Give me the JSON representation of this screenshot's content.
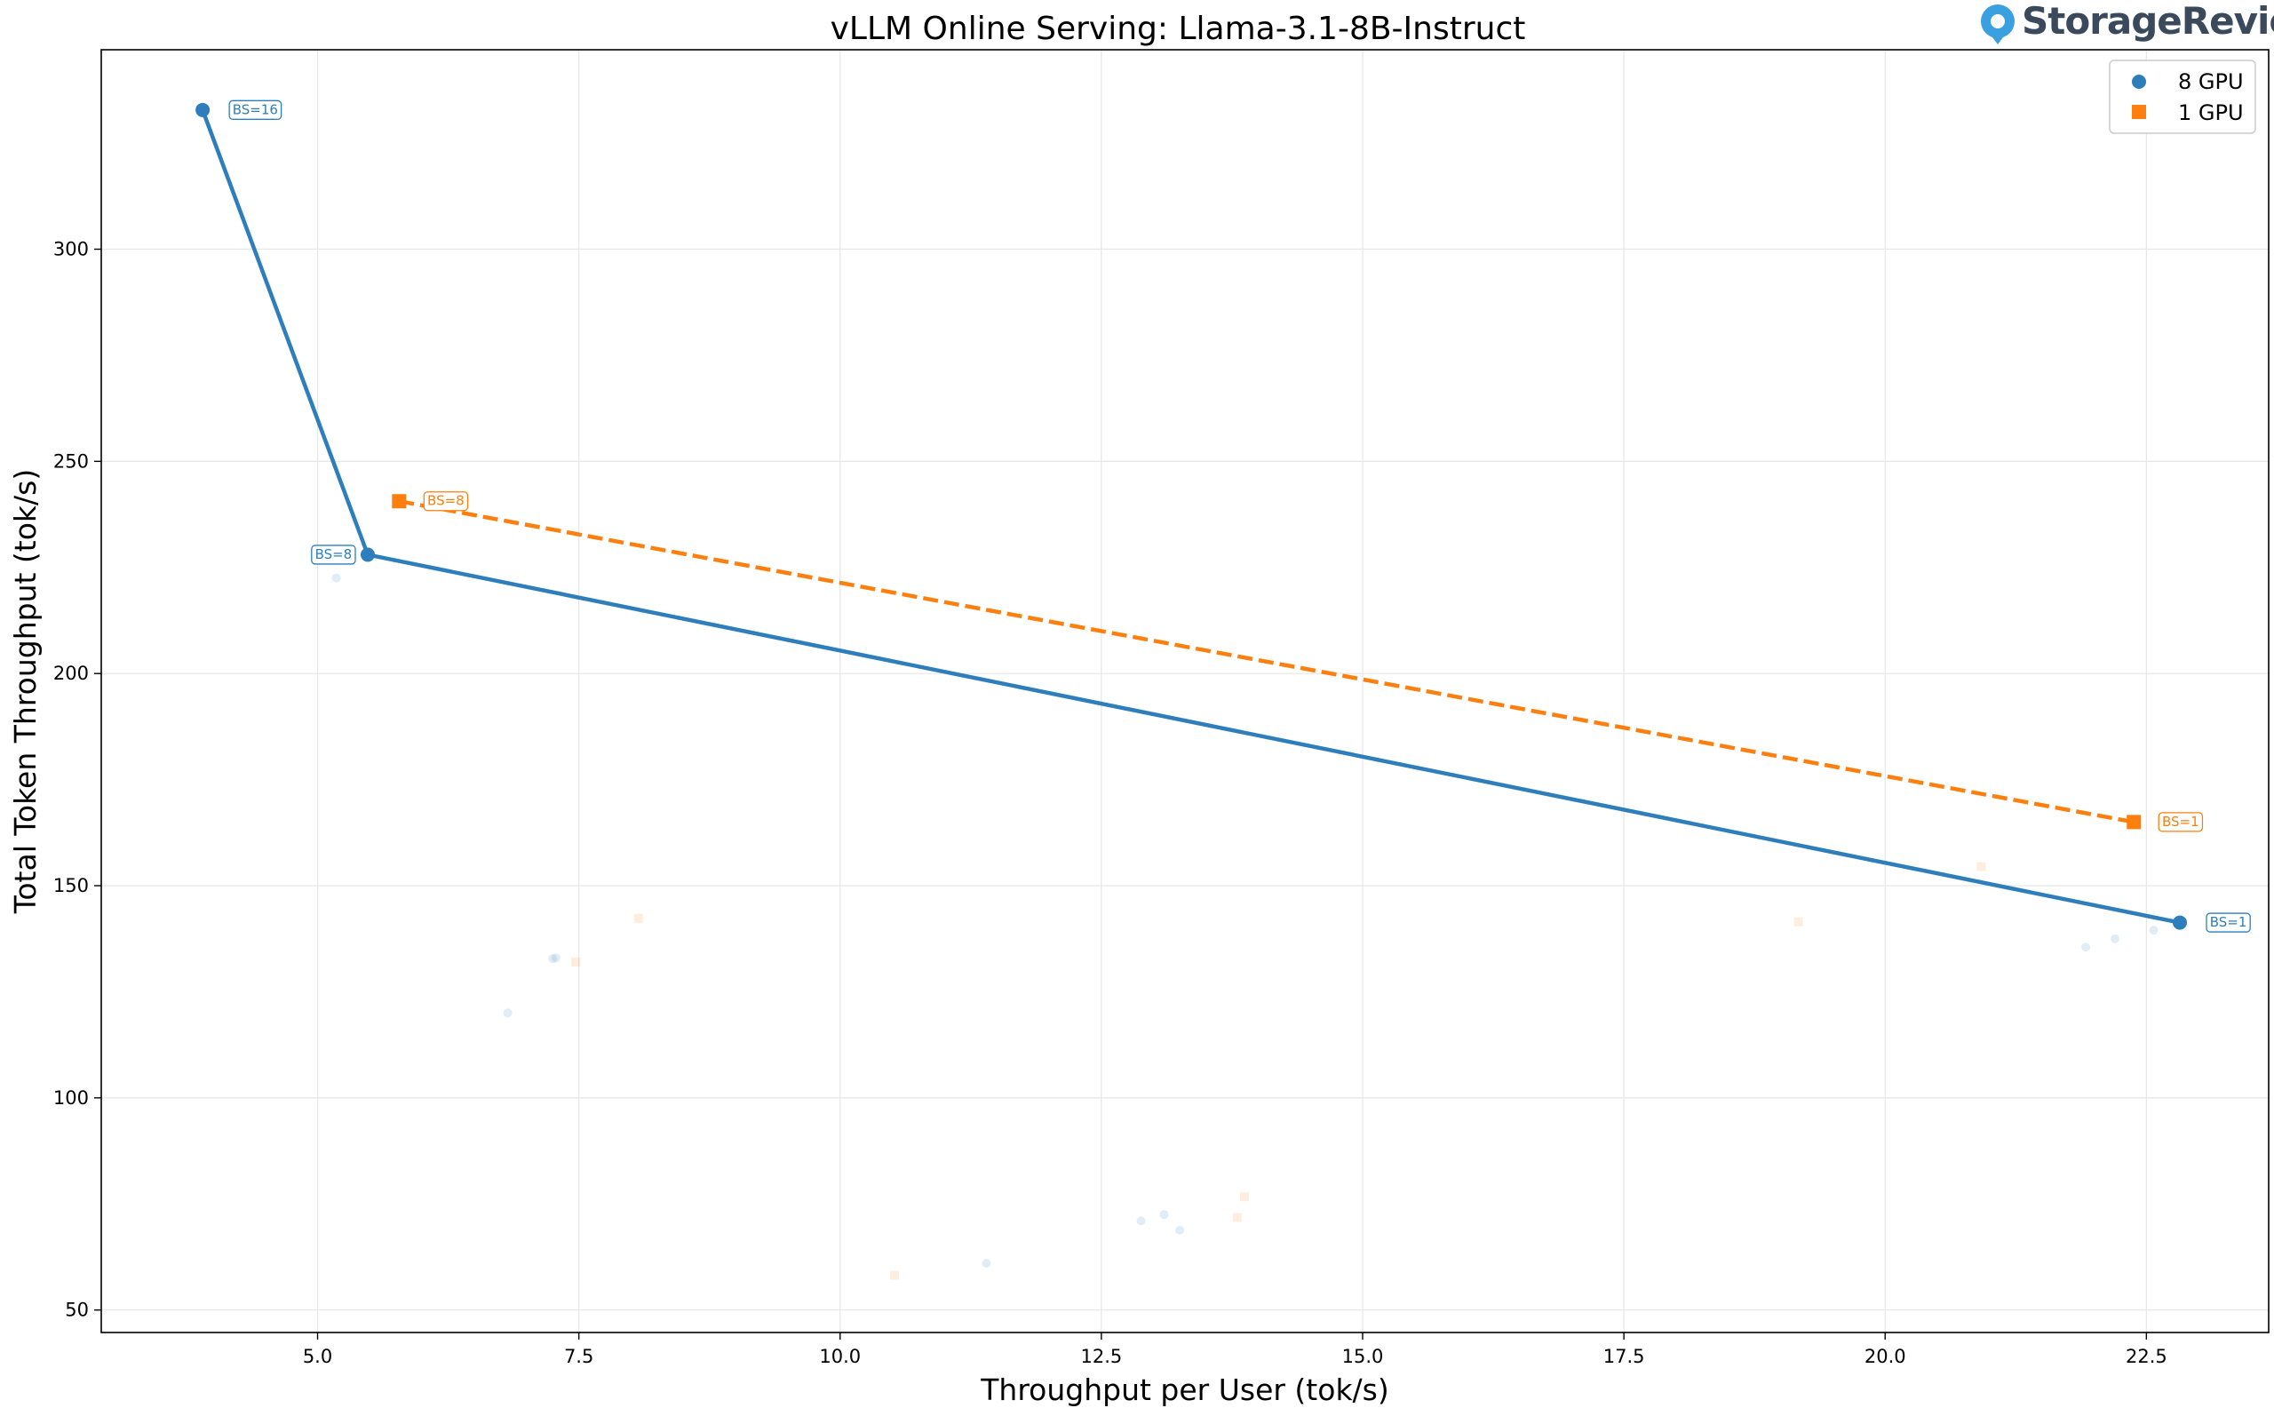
{
  "brand": {
    "name": "StorageReview",
    "icon": "storagereview-logo-icon",
    "accent": "#3aa0e0"
  },
  "chart_data": {
    "type": "line",
    "title": "vLLM Online Serving: Llama-3.1-8B-Instruct",
    "xlabel": "Throughput per User (tok/s)",
    "ylabel": "Total Token Throughput (tok/s)",
    "xlim": [
      2.93,
      23.67
    ],
    "ylim": [
      44.7,
      347.0
    ],
    "xticks": [
      5.0,
      7.5,
      10.0,
      12.5,
      15.0,
      17.5,
      20.0,
      22.5
    ],
    "xtick_labels": [
      "5.0",
      "7.5",
      "10.0",
      "12.5",
      "15.0",
      "17.5",
      "20.0",
      "22.5"
    ],
    "yticks": [
      50,
      100,
      150,
      200,
      250,
      300
    ],
    "ytick_labels": [
      "50",
      "100",
      "150",
      "200",
      "250",
      "300"
    ],
    "grid": true,
    "legend_position": "top-right",
    "series": [
      {
        "name": "8 GPU",
        "color": "#2e7ebc",
        "marker": "circle",
        "line_style": "solid",
        "points": [
          {
            "x": 3.9,
            "y": 332.8,
            "label": "BS=16"
          },
          {
            "x": 5.48,
            "y": 228.0,
            "label": "BS=8"
          },
          {
            "x": 22.82,
            "y": 141.3,
            "label": "BS=1"
          }
        ],
        "faint_points": [
          {
            "x": 5.18,
            "y": 222.5
          },
          {
            "x": 6.82,
            "y": 120.0
          },
          {
            "x": 7.25,
            "y": 132.8
          },
          {
            "x": 7.28,
            "y": 133.0
          },
          {
            "x": 11.4,
            "y": 61.0
          },
          {
            "x": 12.88,
            "y": 71.0
          },
          {
            "x": 13.1,
            "y": 72.5
          },
          {
            "x": 13.25,
            "y": 68.8
          },
          {
            "x": 21.92,
            "y": 135.5
          },
          {
            "x": 22.2,
            "y": 137.5
          },
          {
            "x": 22.57,
            "y": 139.5
          }
        ]
      },
      {
        "name": "1 GPU",
        "color": "#ff7f0e",
        "marker": "square",
        "line_style": "dashed",
        "points": [
          {
            "x": 5.78,
            "y": 240.6,
            "label": "BS=8"
          },
          {
            "x": 22.38,
            "y": 165.0,
            "label": "BS=1"
          }
        ],
        "faint_points": [
          {
            "x": 7.47,
            "y": 132.0
          },
          {
            "x": 8.07,
            "y": 142.3
          },
          {
            "x": 10.52,
            "y": 58.2
          },
          {
            "x": 13.8,
            "y": 71.8
          },
          {
            "x": 13.87,
            "y": 76.7
          },
          {
            "x": 19.17,
            "y": 141.5
          },
          {
            "x": 20.92,
            "y": 154.5
          }
        ]
      }
    ]
  }
}
